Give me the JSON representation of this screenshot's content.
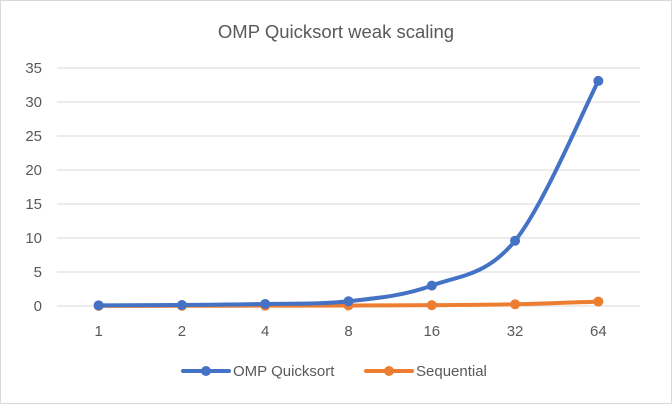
{
  "chart_data": {
    "type": "line",
    "title": "OMP Quicksort weak scaling",
    "xlabel": "",
    "ylabel": "",
    "categories": [
      "1",
      "2",
      "4",
      "8",
      "16",
      "32",
      "64"
    ],
    "ylim": [
      0,
      35
    ],
    "yticks": [
      0,
      5,
      10,
      15,
      20,
      25,
      30,
      35
    ],
    "grid": "horizontal",
    "legend_position": "bottom",
    "series": [
      {
        "name": "OMP Quicksort",
        "color": "#4472c4",
        "values": [
          0.1,
          0.15,
          0.3,
          0.7,
          3.0,
          9.6,
          33.1
        ]
      },
      {
        "name": "Sequential",
        "color": "#ed7d31",
        "values": [
          0.02,
          0.03,
          0.05,
          0.08,
          0.12,
          0.25,
          0.65
        ]
      }
    ]
  }
}
